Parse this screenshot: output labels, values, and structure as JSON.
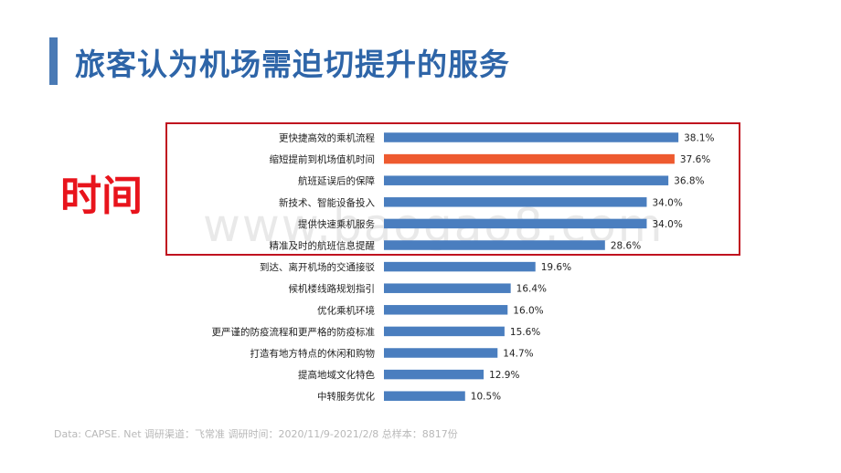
{
  "title": "旅客认为机场需迫切提升的服务",
  "highlight_label": "时间",
  "watermark": "www.baogao8.com",
  "footer": "Data: CAPSE. Net    调研渠道：飞常准    调研时间：2020/11/9-2021/2/8    总样本：8817份",
  "colors": {
    "bar": "#4a7ebf",
    "highlight_bar": "#ee5a2f",
    "box": "#c0121f",
    "title": "#2e65a8"
  },
  "chart_data": {
    "type": "bar",
    "orientation": "horizontal",
    "title": "旅客认为机场需迫切提升的服务",
    "xlabel": "",
    "ylabel": "",
    "xlim": [
      0,
      40
    ],
    "highlight_index": 1,
    "categories": [
      "更快捷高效的乘机流程",
      "缩短提前到机场值机时间",
      "航班延误后的保障",
      "新技术、智能设备投入",
      "提供快速乘机服务",
      "精准及时的航班信息提醒",
      "到达、离开机场的交通接驳",
      "候机楼线路规划指引",
      "优化乘机环境",
      "更严谨的防疫流程和更严格的防疫标准",
      "打造有地方特点的休闲和购物",
      "提高地域文化特色",
      "中转服务优化"
    ],
    "values": [
      38.1,
      37.6,
      36.8,
      34.0,
      34.0,
      28.6,
      19.6,
      16.4,
      16.0,
      15.6,
      14.7,
      12.9,
      10.5
    ],
    "value_labels": [
      "38.1%",
      "37.6%",
      "36.8%",
      "34.0%",
      "34.0%",
      "28.6%",
      "19.6%",
      "16.4%",
      "16.0%",
      "15.6%",
      "14.7%",
      "12.9%",
      "10.5%"
    ]
  }
}
